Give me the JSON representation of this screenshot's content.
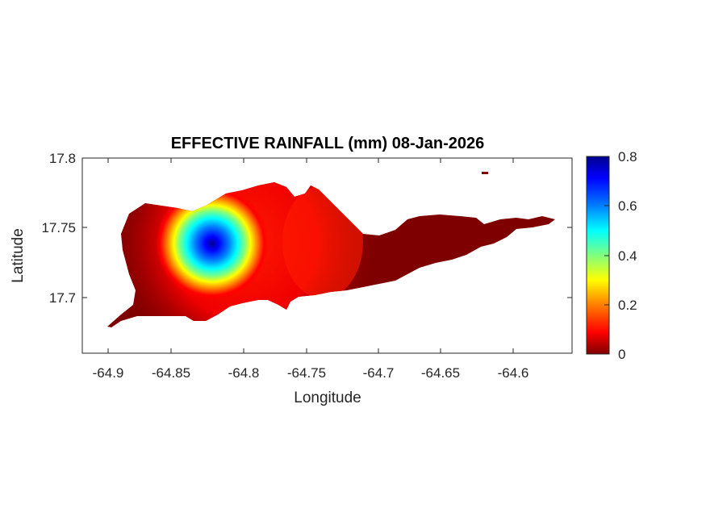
{
  "map": {
    "title": "EFFECTIVE RAINFALL (mm) 08-Jan-2026",
    "xlabel": "Longitude",
    "ylabel": "Latitude",
    "xlim": [
      -64.92,
      -64.555
    ],
    "ylim": [
      17.66,
      17.8
    ],
    "xticks": [
      "-64.9",
      "-64.85",
      "-64.8",
      "-64.75",
      "-64.7",
      "-64.65",
      "-64.6"
    ],
    "yticks": [
      "17.7",
      "17.75",
      "17.8"
    ],
    "colorbar": {
      "min": 0,
      "max": 0.8,
      "ticks": [
        "0",
        "0.2",
        "0.4",
        "0.6",
        "0.8"
      ],
      "colormap": "jet",
      "colors": [
        "#7f0000",
        "#ff0000",
        "#ff7f00",
        "#ffff00",
        "#7fff7f",
        "#00ffff",
        "#007fff",
        "#0000ff",
        "#00008f"
      ]
    },
    "rainfall_peak": {
      "lon": -64.825,
      "lat": 17.738,
      "value_mm": 0.78
    }
  }
}
